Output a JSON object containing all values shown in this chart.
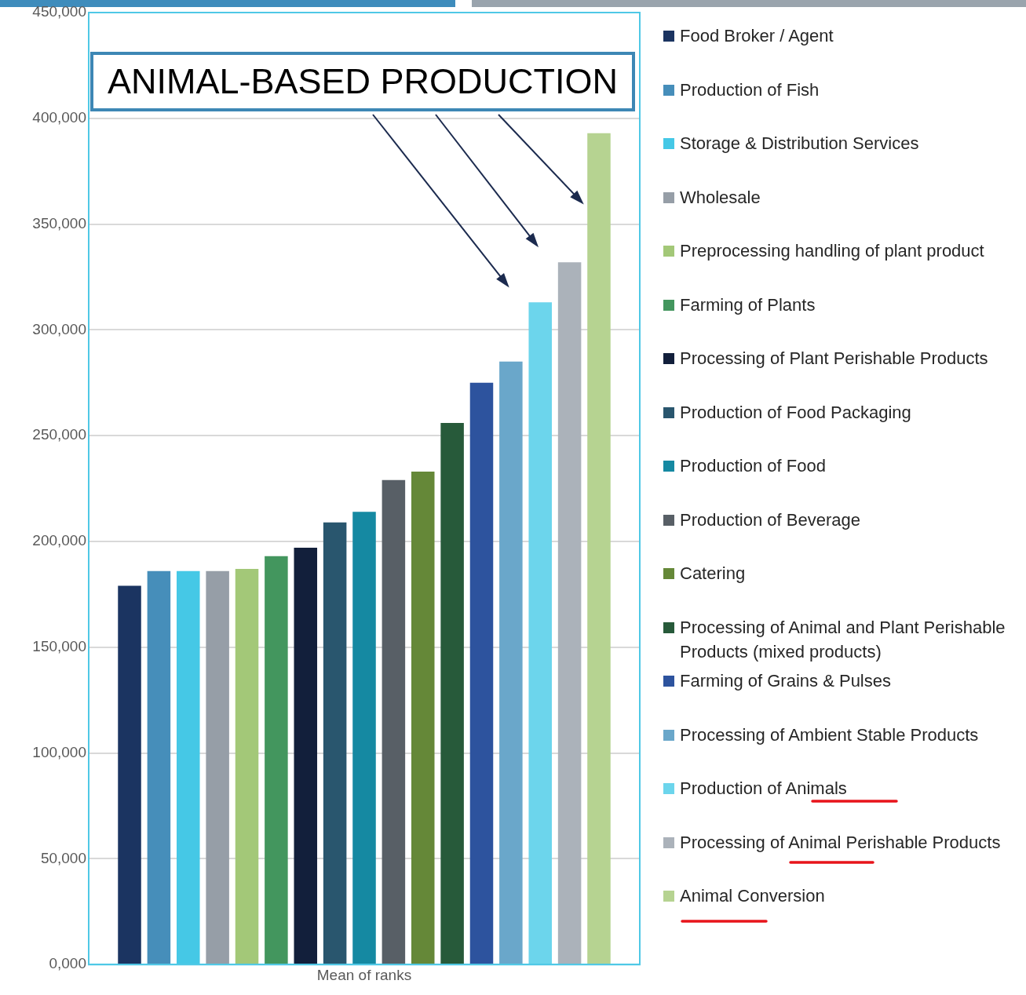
{
  "chart_data": {
    "type": "bar",
    "categories": [
      "Mean of ranks"
    ],
    "series": [
      {
        "name": "Food Broker / Agent",
        "color": "#1b3461",
        "values": [
          179000
        ]
      },
      {
        "name": "Production of Fish",
        "color": "#468eba",
        "values": [
          186000
        ]
      },
      {
        "name": "Storage & Distribution Services",
        "color": "#45c8e6",
        "values": [
          186000
        ]
      },
      {
        "name": "Wholesale",
        "color": "#969ea7",
        "values": [
          186000
        ]
      },
      {
        "name": "Preprocessing handling of plant product",
        "color": "#a3c878",
        "values": [
          187000
        ]
      },
      {
        "name": "Farming of Plants",
        "color": "#43965e",
        "values": [
          193000
        ]
      },
      {
        "name": "Processing of Plant Perishable Products",
        "color": "#121f3b",
        "values": [
          197000
        ]
      },
      {
        "name": "Production of Food Packaging",
        "color": "#29566e",
        "values": [
          209000
        ]
      },
      {
        "name": "Production of Food",
        "color": "#1589a2",
        "values": [
          214000
        ]
      },
      {
        "name": "Production of Beverage",
        "color": "#585f66",
        "values": [
          229000
        ]
      },
      {
        "name": "Catering",
        "color": "#658838",
        "values": [
          233000
        ]
      },
      {
        "name": "Processing of Animal and Plant Perishable Products (mixed products)",
        "color": "#275a3a",
        "values": [
          256000
        ]
      },
      {
        "name": "Farming of Grains & Pulses",
        "color": "#2d539e",
        "values": [
          275000
        ]
      },
      {
        "name": "Processing of Ambient Stable Products",
        "color": "#6aa7ca",
        "values": [
          285000
        ]
      },
      {
        "name": "Production of Animals",
        "color": "#6cd5ec",
        "values": [
          313000
        ]
      },
      {
        "name": "Processing of Animal Perishable Products",
        "color": "#abb2ba",
        "values": [
          332000
        ]
      },
      {
        "name": "Animal Conversion",
        "color": "#b6d391",
        "values": [
          393000
        ]
      }
    ],
    "ylim": [
      0,
      450000
    ],
    "yticks": [
      {
        "value": 0,
        "label": "0,000"
      },
      {
        "value": 50000,
        "label": "50,000"
      },
      {
        "value": 100000,
        "label": "100,000"
      },
      {
        "value": 150000,
        "label": "150,000"
      },
      {
        "value": 200000,
        "label": "200,000"
      },
      {
        "value": 250000,
        "label": "250,000"
      },
      {
        "value": 300000,
        "label": "300,000"
      },
      {
        "value": 350000,
        "label": "350,000"
      },
      {
        "value": 400000,
        "label": "400,000"
      },
      {
        "value": 450000,
        "label": "450,000"
      }
    ],
    "grid": "y",
    "legend": "right",
    "annotations": [
      "ANIMAL-BASED PRODUCTION"
    ]
  }
}
